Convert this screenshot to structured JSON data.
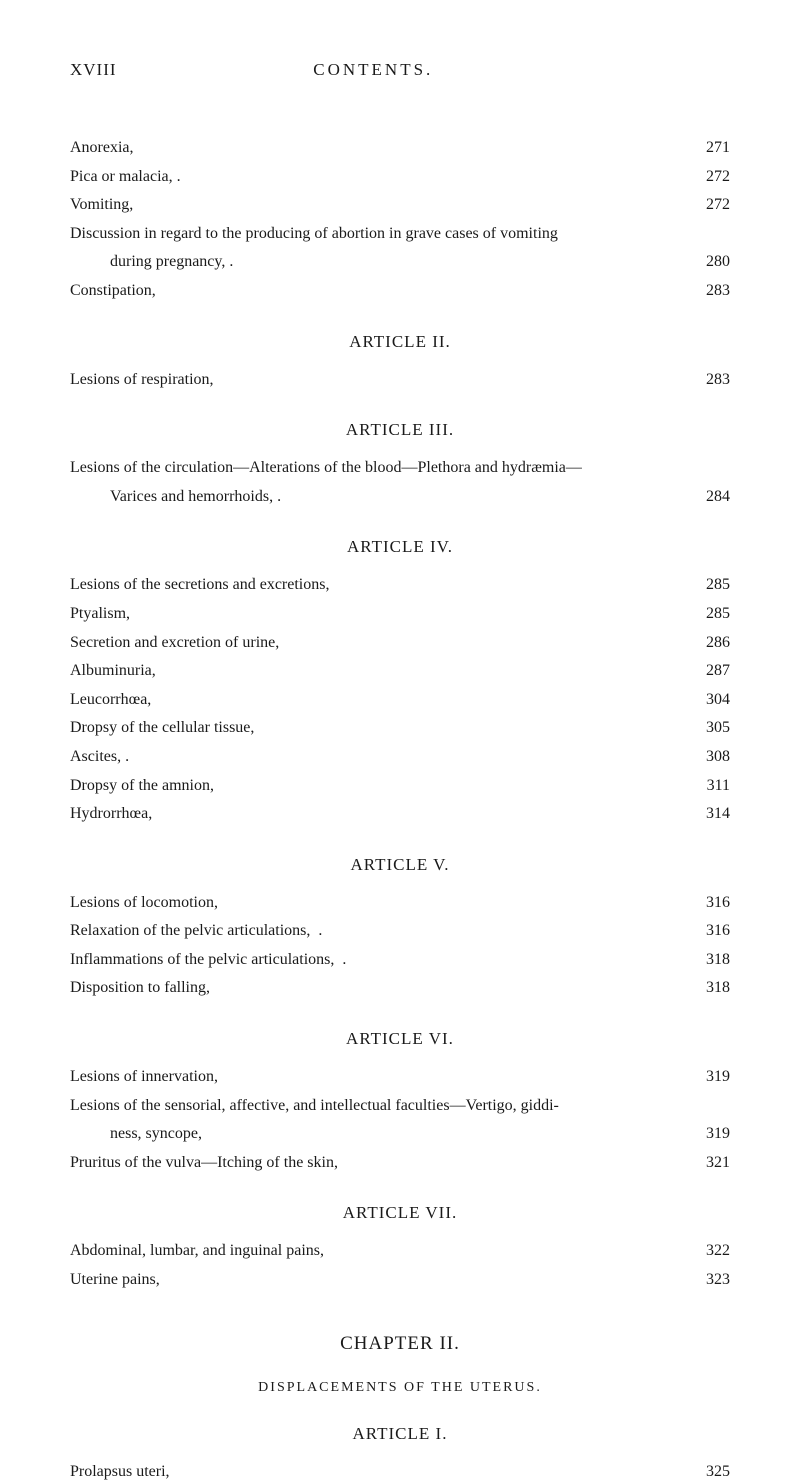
{
  "header": {
    "roman": "XVIII",
    "title": "CONTENTS."
  },
  "block1": {
    "entries": [
      {
        "label": "Anorexia,",
        "page": "271"
      },
      {
        "label": "Pica or malacia, .",
        "page": "272"
      },
      {
        "label": "Vomiting,",
        "page": "272"
      },
      {
        "label": "Discussion in regard to the producing of abortion in grave cases of vomiting",
        "page": ""
      },
      {
        "label": "during pregnancy, .",
        "page": "280",
        "indent": true
      },
      {
        "label": "Constipation,",
        "page": "283"
      }
    ]
  },
  "article2": {
    "heading": "ARTICLE II.",
    "entries": [
      {
        "label": "Lesions of respiration,",
        "page": "283"
      }
    ]
  },
  "article3": {
    "heading": "ARTICLE III.",
    "prose": "Lesions of the circulation—Alterations of the blood—Plethora and hydræmia—",
    "entries": [
      {
        "label": "Varices and hemorrhoids, .",
        "page": "284",
        "indent": true
      }
    ]
  },
  "article4": {
    "heading": "ARTICLE IV.",
    "entries": [
      {
        "label": "Lesions of the secretions and excretions,",
        "page": "285"
      },
      {
        "label": "Ptyalism,",
        "page": "285"
      },
      {
        "label": "Secretion and excretion of urine,",
        "page": "286"
      },
      {
        "label": "Albuminuria,",
        "page": "287"
      },
      {
        "label": "Leucorrhœa,",
        "page": "304"
      },
      {
        "label": "Dropsy of the cellular tissue,",
        "page": "305"
      },
      {
        "label": "Ascites, .",
        "page": "308"
      },
      {
        "label": "Dropsy of the amnion,",
        "page": "311"
      },
      {
        "label": "Hydrorrhœa,",
        "page": "314"
      }
    ]
  },
  "article5": {
    "heading": "ARTICLE V.",
    "entries": [
      {
        "label": "Lesions of locomotion,",
        "page": "316"
      },
      {
        "label": "Relaxation of the pelvic articulations,  .",
        "page": "316"
      },
      {
        "label": "Inflammations of the pelvic articulations,  .",
        "page": "318"
      },
      {
        "label": "Disposition to falling,",
        "page": "318"
      }
    ]
  },
  "article6": {
    "heading": "ARTICLE VI.",
    "entries": [
      {
        "label": "Lesions of innervation,",
        "page": "319"
      },
      {
        "label": "Lesions of the sensorial, affective, and intellectual faculties—Vertigo, giddi-",
        "page": ""
      },
      {
        "label": "ness, syncope,",
        "page": "319",
        "indent": true
      },
      {
        "label": "Pruritus of the vulva—Itching of the skin,",
        "page": "321"
      }
    ]
  },
  "article7": {
    "heading": "ARTICLE VII.",
    "entries": [
      {
        "label": "Abdominal, lumbar, and inguinal pains,",
        "page": "322"
      },
      {
        "label": "Uterine pains,",
        "page": "323"
      }
    ]
  },
  "chapter2": {
    "heading": "CHAPTER II.",
    "subtitle": "DISPLACEMENTS OF THE UTERUS."
  },
  "article1b": {
    "heading": "ARTICLE I.",
    "entries": [
      {
        "label": "Prolapsus uteri,",
        "page": "325"
      }
    ]
  }
}
